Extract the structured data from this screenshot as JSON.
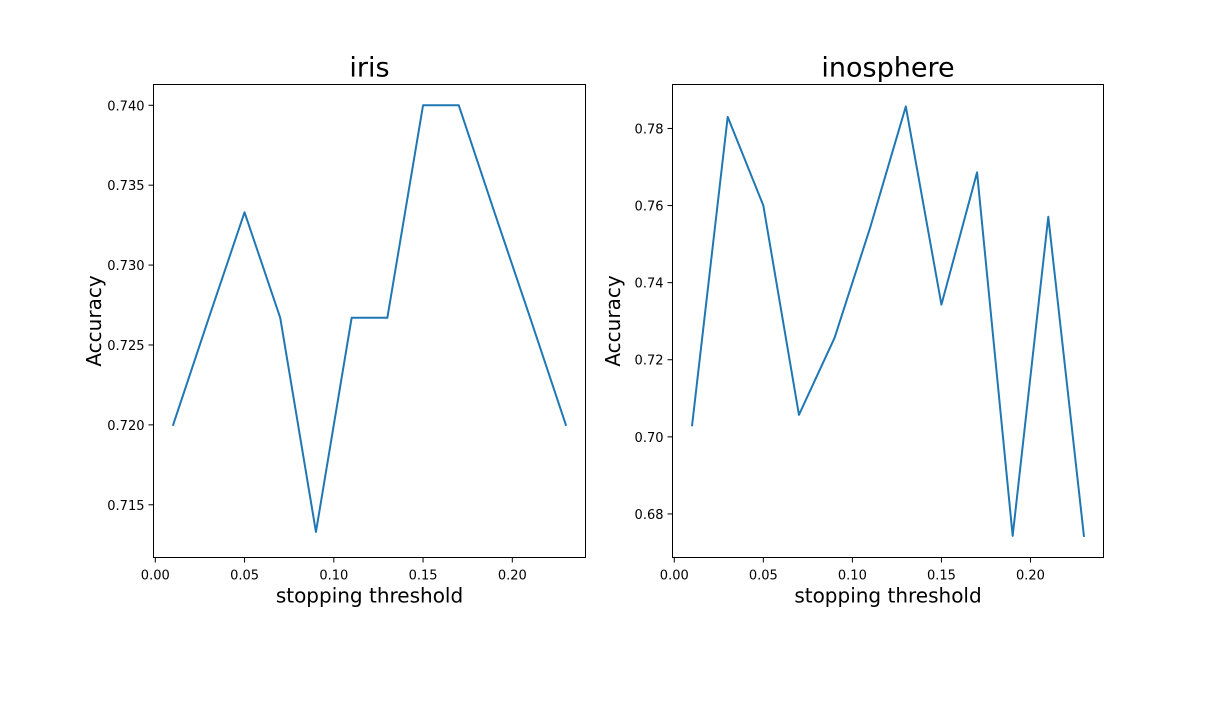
{
  "chart_data": [
    {
      "type": "line",
      "title": "iris",
      "xlabel": "stopping threshold",
      "ylabel": "Accuracy",
      "xlim": [
        -0.001,
        0.241
      ],
      "ylim": [
        0.7117,
        0.7413
      ],
      "xticks": [
        0.0,
        0.05,
        0.1,
        0.15,
        0.2
      ],
      "xtick_labels": [
        "0.00",
        "0.05",
        "0.10",
        "0.15",
        "0.20"
      ],
      "yticks": [
        0.715,
        0.72,
        0.725,
        0.73,
        0.735,
        0.74
      ],
      "ytick_labels": [
        "0.715",
        "0.720",
        "0.725",
        "0.730",
        "0.735",
        "0.740"
      ],
      "grid": false,
      "color": "#1f77b4",
      "series": [
        {
          "x": [
            0.01,
            0.03,
            0.05,
            0.07,
            0.09,
            0.11,
            0.13,
            0.15,
            0.17,
            0.19,
            0.21,
            0.23
          ],
          "values": [
            0.72,
            0.7267,
            0.7333,
            0.7267,
            0.7133,
            0.7267,
            0.7267,
            0.74,
            0.74,
            0.7333,
            0.7267,
            0.72
          ]
        }
      ]
    },
    {
      "type": "line",
      "title": "inosphere",
      "xlabel": "stopping threshold",
      "ylabel": "Accuracy",
      "xlim": [
        -0.001,
        0.241
      ],
      "ylim": [
        0.6687,
        0.7914
      ],
      "xticks": [
        0.0,
        0.05,
        0.1,
        0.15,
        0.2
      ],
      "xtick_labels": [
        "0.00",
        "0.05",
        "0.10",
        "0.15",
        "0.20"
      ],
      "yticks": [
        0.68,
        0.7,
        0.72,
        0.74,
        0.76,
        0.78
      ],
      "ytick_labels": [
        "0.68",
        "0.70",
        "0.72",
        "0.74",
        "0.76",
        "0.78"
      ],
      "grid": false,
      "color": "#1f77b4",
      "series": [
        {
          "x": [
            0.01,
            0.03,
            0.05,
            0.07,
            0.09,
            0.11,
            0.13,
            0.15,
            0.17,
            0.19,
            0.21,
            0.23
          ],
          "values": [
            0.703,
            0.783,
            0.76,
            0.7057,
            0.7257,
            0.7543,
            0.7857,
            0.7343,
            0.7686,
            0.6743,
            0.7571,
            0.6743
          ]
        }
      ]
    }
  ]
}
